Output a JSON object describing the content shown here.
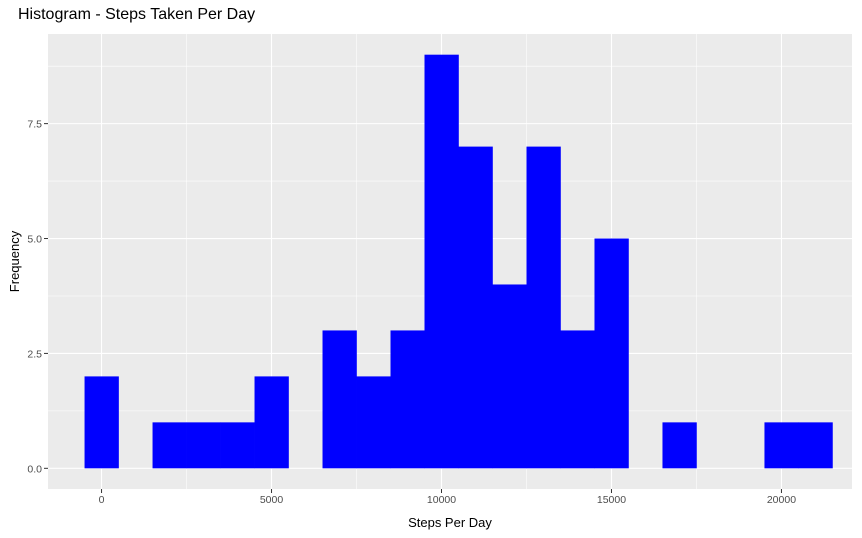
{
  "chart_data": {
    "type": "bar",
    "subtype": "histogram",
    "title": "Histogram - Steps Taken Per Day",
    "xlabel": "Steps Per Day",
    "ylabel": "Frequency",
    "bin_width": 1000,
    "bins": [
      {
        "x": 0,
        "count": 2
      },
      {
        "x": 1000,
        "count": 0
      },
      {
        "x": 2000,
        "count": 1
      },
      {
        "x": 3000,
        "count": 1
      },
      {
        "x": 4000,
        "count": 1
      },
      {
        "x": 5000,
        "count": 2
      },
      {
        "x": 6000,
        "count": 0
      },
      {
        "x": 7000,
        "count": 3
      },
      {
        "x": 8000,
        "count": 2
      },
      {
        "x": 9000,
        "count": 3
      },
      {
        "x": 10000,
        "count": 9
      },
      {
        "x": 11000,
        "count": 7
      },
      {
        "x": 12000,
        "count": 4
      },
      {
        "x": 13000,
        "count": 7
      },
      {
        "x": 14000,
        "count": 3
      },
      {
        "x": 15000,
        "count": 5
      },
      {
        "x": 16000,
        "count": 0
      },
      {
        "x": 17000,
        "count": 1
      },
      {
        "x": 18000,
        "count": 0
      },
      {
        "x": 19000,
        "count": 0
      },
      {
        "x": 20000,
        "count": 1
      },
      {
        "x": 21000,
        "count": 1
      }
    ],
    "xlim": [
      -1575,
      22075
    ],
    "ylim": [
      -0.45,
      9.45
    ],
    "xticks": [
      0,
      5000,
      10000,
      15000,
      20000
    ],
    "xtick_labels": [
      "0",
      "5000",
      "10000",
      "15000",
      "20000"
    ],
    "yticks": [
      0,
      2.5,
      5,
      7.5
    ],
    "ytick_labels": [
      "0.0",
      "2.5",
      "5.0",
      "7.5"
    ],
    "bar_color": "#0000ff",
    "panel_color": "#ebebeb",
    "grid": true,
    "legend": "none"
  }
}
